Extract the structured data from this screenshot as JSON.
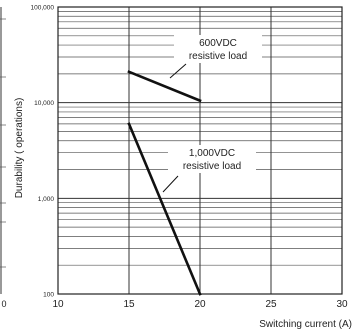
{
  "chart_data": {
    "type": "line",
    "title": "",
    "xlabel": "Switching current (A)",
    "ylabel": "Durability ( operations)",
    "xlim": [
      10,
      30
    ],
    "ylim": [
      100,
      100000
    ],
    "yscale": "log",
    "grid": true,
    "x_ticks": [
      "10",
      "15",
      "20",
      "25",
      "30"
    ],
    "y_ticks": [
      "100",
      "1,000",
      "10,000",
      "100,000"
    ],
    "left_edge_tick": "0",
    "series": [
      {
        "name": "600VDC resistive load",
        "x": [
          15,
          20
        ],
        "y": [
          21000,
          10500
        ]
      },
      {
        "name": "1,000VDC resistive load",
        "x": [
          15,
          20
        ],
        "y": [
          6000,
          100
        ]
      }
    ],
    "annotations": [
      {
        "lines": [
          "600VDC",
          "resistive load"
        ],
        "series": 0
      },
      {
        "lines": [
          "1,000VDC",
          "resistive load"
        ],
        "series": 1
      }
    ]
  }
}
